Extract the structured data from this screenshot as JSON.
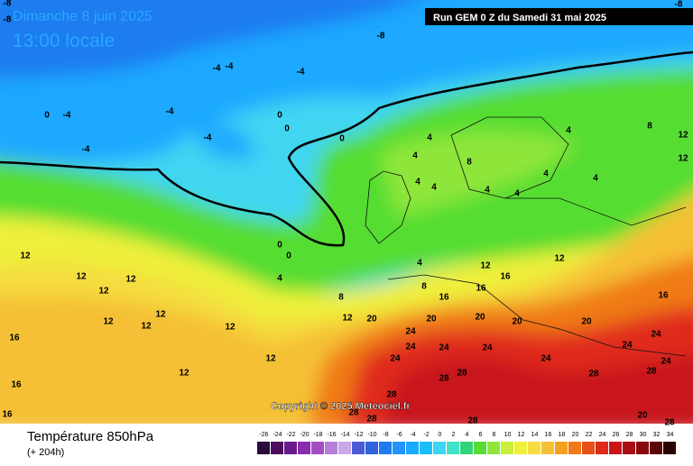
{
  "header": {
    "date": "Dimanche 8 juin 2025",
    "time": "13:00 locale",
    "run": "Run GEM 0 Z du Samedi 31 mai 2025"
  },
  "copyright": "Copyright © 2025 Meteociel.fr",
  "footer": {
    "title": "Température 850hPa",
    "lead": "(+ 204h)"
  },
  "legend": {
    "values": [
      -26,
      -24,
      -22,
      -20,
      -18,
      -16,
      -14,
      -12,
      -10,
      -8,
      -6,
      -4,
      -2,
      0,
      2,
      4,
      6,
      8,
      10,
      12,
      14,
      16,
      18,
      20,
      22,
      24,
      26,
      28,
      30,
      32,
      34
    ],
    "colors": [
      "#2b0a3d",
      "#4b0d5e",
      "#6a1b8a",
      "#8a2bb0",
      "#a24fc4",
      "#b77ed6",
      "#c9a8e6",
      "#4b5bd6",
      "#2f63e0",
      "#1f7bf0",
      "#2293ff",
      "#1aa9ff",
      "#19c0f5",
      "#3fd6f2",
      "#3fe4c8",
      "#33d37a",
      "#55dd33",
      "#8fe63a",
      "#c8ef3a",
      "#eef03a",
      "#f5dd40",
      "#f5c035",
      "#f5a020",
      "#f07a18",
      "#e8501a",
      "#e02a1a",
      "#c8141a",
      "#a80f15",
      "#8a0a0f",
      "#5a0508",
      "#2a0203"
    ]
  },
  "contour_labels": [
    "-8",
    "-8",
    "-8",
    "-8",
    "-4",
    "-4",
    "-4",
    "-4",
    "-4",
    "-4",
    "-4",
    "0",
    "0",
    "0",
    "0",
    "4",
    "4",
    "4",
    "8",
    "8",
    "12",
    "12",
    "4",
    "4",
    "4",
    "4",
    "4",
    "4",
    "0",
    "0",
    "4",
    "4",
    "8",
    "8",
    "12",
    "12",
    "12",
    "12",
    "12",
    "12",
    "12",
    "12",
    "12",
    "12",
    "16",
    "16",
    "16",
    "12",
    "16",
    "12",
    "16",
    "16",
    "16",
    "12",
    "20",
    "20",
    "20",
    "20",
    "20",
    "24",
    "24",
    "24",
    "24",
    "24",
    "24",
    "24",
    "24",
    "28",
    "28",
    "28",
    "28",
    "28",
    "28",
    "28",
    "20",
    "28",
    "24",
    "28"
  ]
}
